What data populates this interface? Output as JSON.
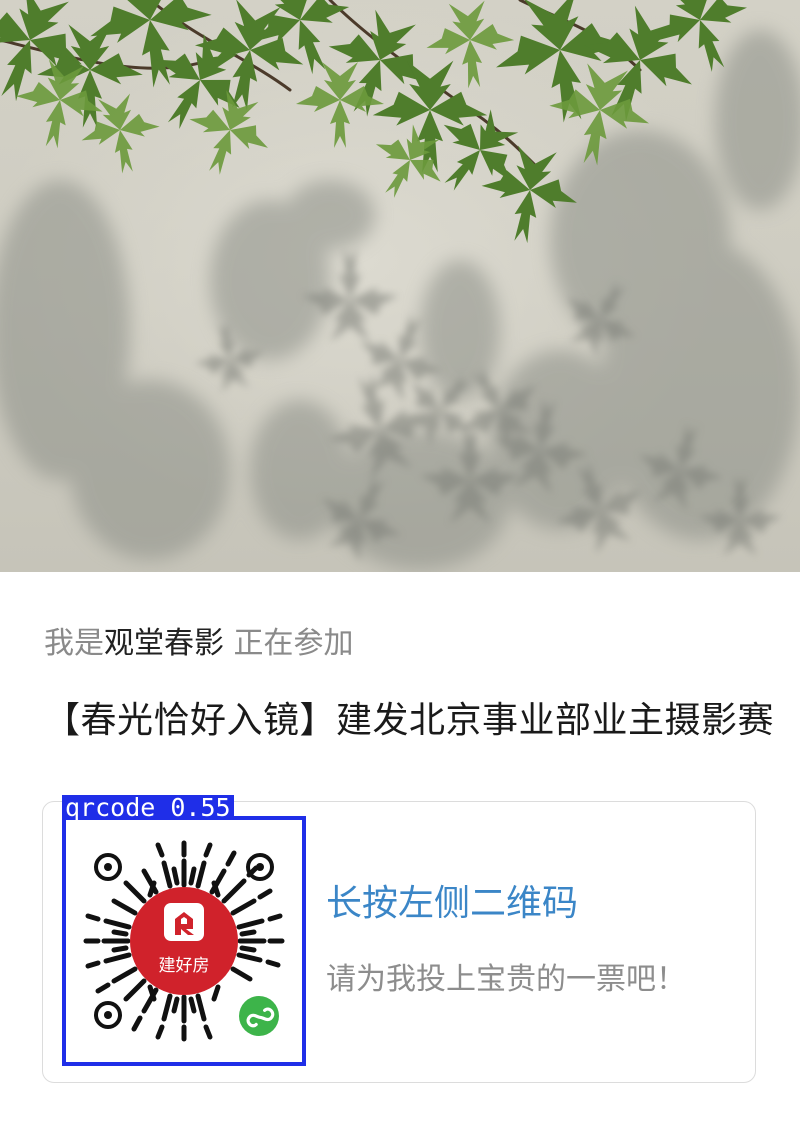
{
  "header_photo": {
    "subject": "leaf-shadows-on-wall"
  },
  "participant": {
    "prefix": "我是",
    "name": "观堂春影",
    "suffix": " 正在参加"
  },
  "event_title": "【春光恰好入镜】建发北京事业部业主摄影赛",
  "vote_card": {
    "detection_label": "qrcode 0.55",
    "qr_center_text": "建好房",
    "qr_center_icon": "house-logo-icon",
    "qr_badge_icon": "mini-program-icon",
    "cta": "长按左侧二维码",
    "subtitle": "请为我投上宝贵的一票吧！"
  },
  "colors": {
    "detection_box": "#1f2ee8",
    "cta_text": "#3b86c7",
    "logo_red": "#d0222b",
    "badge_green": "#3db44a"
  }
}
